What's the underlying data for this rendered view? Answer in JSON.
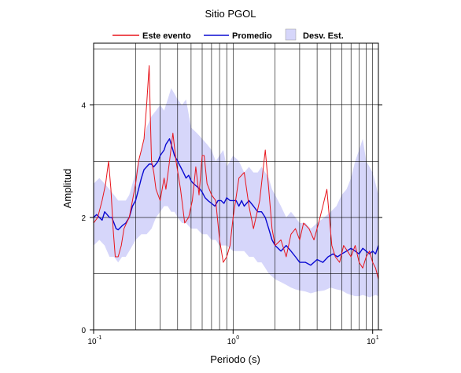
{
  "chart_data": {
    "type": "line",
    "title": "Sitio PGOL",
    "xlabel": "Periodo (s)",
    "ylabel": "Amplitud",
    "xscale": "log",
    "xlim": [
      0.1,
      11
    ],
    "ylim": [
      0,
      5.1
    ],
    "xticks": [
      {
        "value": 0.1,
        "base": "10",
        "exp": "-1"
      },
      {
        "value": 1,
        "base": "10",
        "exp": "0"
      },
      {
        "value": 10,
        "base": "10",
        "exp": "1"
      }
    ],
    "yticks": [
      {
        "value": 0,
        "label": "0"
      },
      {
        "value": 2,
        "label": "2"
      },
      {
        "value": 4,
        "label": "4"
      }
    ],
    "ygrid": [
      1,
      2,
      3,
      4,
      5
    ],
    "grid": true,
    "legend_position": "top",
    "colors": {
      "event": "#e8141b",
      "mean": "#0a0ad2",
      "std": "#d6d6fa"
    },
    "legend": [
      {
        "label": "Este evento",
        "kind": "line",
        "color": "#e8141b"
      },
      {
        "label": "Promedio",
        "kind": "line",
        "color": "#0a0ad2"
      },
      {
        "label": "Desv. Est.",
        "kind": "patch",
        "color": "#d6d6fa"
      }
    ],
    "series": [
      {
        "name": "Este evento",
        "color": "#e8141b",
        "x": [
          0.1,
          0.107,
          0.115,
          0.122,
          0.128,
          0.133,
          0.138,
          0.143,
          0.15,
          0.158,
          0.165,
          0.172,
          0.18,
          0.19,
          0.2,
          0.21,
          0.22,
          0.23,
          0.24,
          0.25,
          0.255,
          0.26,
          0.27,
          0.28,
          0.3,
          0.32,
          0.33,
          0.35,
          0.37,
          0.39,
          0.42,
          0.45,
          0.48,
          0.51,
          0.54,
          0.57,
          0.6,
          0.62,
          0.65,
          0.7,
          0.75,
          0.8,
          0.85,
          0.9,
          0.95,
          1.0,
          1.1,
          1.2,
          1.3,
          1.4,
          1.55,
          1.7,
          1.8,
          1.9,
          2.0,
          2.2,
          2.4,
          2.6,
          2.8,
          3.0,
          3.2,
          3.5,
          3.8,
          4.1,
          4.4,
          4.7,
          4.9,
          5.1,
          5.4,
          5.8,
          6.2,
          6.6,
          7.0,
          7.5,
          8.0,
          8.5,
          9.0,
          9.5,
          10.0,
          10.5,
          11.0
        ],
        "values": [
          1.9,
          2.0,
          2.3,
          2.6,
          3.0,
          2.5,
          1.8,
          1.3,
          1.3,
          1.5,
          1.8,
          1.9,
          2.0,
          2.3,
          2.6,
          3.0,
          3.2,
          3.4,
          4.0,
          4.7,
          3.8,
          3.0,
          2.8,
          2.5,
          2.3,
          2.7,
          2.5,
          3.0,
          3.5,
          3.0,
          2.5,
          1.9,
          2.0,
          2.3,
          2.9,
          2.4,
          3.1,
          3.1,
          2.6,
          2.4,
          2.3,
          1.6,
          1.2,
          1.3,
          1.5,
          2.0,
          2.7,
          2.8,
          2.2,
          1.8,
          2.3,
          3.2,
          2.5,
          1.8,
          1.5,
          1.6,
          1.3,
          1.7,
          1.8,
          1.6,
          1.9,
          1.8,
          1.6,
          1.9,
          2.2,
          2.5,
          2.0,
          1.5,
          1.3,
          1.2,
          1.5,
          1.4,
          1.3,
          1.5,
          1.2,
          1.1,
          1.3,
          1.4,
          1.2,
          1.1,
          0.9
        ]
      },
      {
        "name": "Promedio",
        "color": "#0a0ad2",
        "x": [
          0.1,
          0.105,
          0.11,
          0.115,
          0.12,
          0.125,
          0.13,
          0.135,
          0.14,
          0.145,
          0.15,
          0.16,
          0.17,
          0.18,
          0.19,
          0.2,
          0.21,
          0.22,
          0.23,
          0.24,
          0.25,
          0.26,
          0.27,
          0.28,
          0.29,
          0.3,
          0.31,
          0.32,
          0.33,
          0.34,
          0.35,
          0.36,
          0.37,
          0.38,
          0.39,
          0.4,
          0.42,
          0.44,
          0.46,
          0.48,
          0.5,
          0.52,
          0.55,
          0.58,
          0.6,
          0.63,
          0.66,
          0.7,
          0.74,
          0.78,
          0.82,
          0.86,
          0.9,
          0.95,
          1.0,
          1.05,
          1.1,
          1.15,
          1.2,
          1.3,
          1.4,
          1.5,
          1.6,
          1.7,
          1.8,
          1.9,
          2.0,
          2.2,
          2.4,
          2.6,
          2.8,
          3.0,
          3.3,
          3.6,
          4.0,
          4.4,
          4.8,
          5.2,
          5.6,
          6.0,
          6.5,
          7.0,
          7.5,
          8.0,
          8.5,
          9.0,
          9.5,
          10.0,
          10.5,
          11.0
        ],
        "values": [
          2.0,
          2.05,
          2.0,
          1.95,
          2.1,
          2.05,
          2.0,
          2.0,
          1.9,
          1.8,
          1.78,
          1.85,
          1.9,
          2.0,
          2.2,
          2.3,
          2.5,
          2.7,
          2.85,
          2.9,
          2.95,
          2.95,
          2.9,
          2.95,
          3.0,
          3.1,
          3.15,
          3.2,
          3.3,
          3.35,
          3.4,
          3.3,
          3.2,
          3.1,
          3.05,
          3.0,
          2.9,
          2.8,
          2.7,
          2.75,
          2.65,
          2.6,
          2.55,
          2.5,
          2.45,
          2.35,
          2.3,
          2.25,
          2.2,
          2.3,
          2.3,
          2.25,
          2.35,
          2.3,
          2.3,
          2.3,
          2.2,
          2.3,
          2.2,
          2.3,
          2.2,
          2.1,
          2.1,
          2.0,
          1.8,
          1.6,
          1.5,
          1.4,
          1.5,
          1.4,
          1.3,
          1.2,
          1.2,
          1.15,
          1.25,
          1.2,
          1.3,
          1.35,
          1.3,
          1.35,
          1.4,
          1.45,
          1.4,
          1.35,
          1.45,
          1.4,
          1.35,
          1.4,
          1.35,
          1.5
        ]
      }
    ],
    "std_band": {
      "name": "Desv. Est.",
      "color": "#d6d6fa",
      "x": [
        0.1,
        0.11,
        0.12,
        0.13,
        0.14,
        0.15,
        0.16,
        0.17,
        0.18,
        0.19,
        0.2,
        0.22,
        0.24,
        0.26,
        0.28,
        0.3,
        0.32,
        0.34,
        0.36,
        0.38,
        0.4,
        0.43,
        0.46,
        0.5,
        0.55,
        0.6,
        0.65,
        0.7,
        0.75,
        0.8,
        0.85,
        0.9,
        1.0,
        1.1,
        1.2,
        1.3,
        1.4,
        1.5,
        1.6,
        1.7,
        1.8,
        1.9,
        2.0,
        2.2,
        2.4,
        2.6,
        2.8,
        3.0,
        3.3,
        3.6,
        4.0,
        4.5,
        5.0,
        5.5,
        6.0,
        6.5,
        7.0,
        7.5,
        8.0,
        8.5,
        9.0,
        9.5,
        10.0,
        10.5,
        11.0
      ],
      "upper": [
        2.6,
        2.7,
        2.6,
        2.5,
        2.4,
        2.3,
        2.3,
        2.3,
        2.4,
        2.6,
        2.8,
        3.2,
        3.6,
        3.8,
        3.9,
        4.0,
        3.9,
        4.1,
        4.3,
        4.2,
        4.1,
        4.0,
        4.1,
        3.6,
        3.5,
        3.4,
        3.3,
        3.2,
        3.0,
        3.1,
        3.2,
        2.9,
        3.1,
        3.0,
        2.8,
        2.9,
        2.8,
        2.8,
        2.9,
        2.8,
        2.7,
        2.5,
        2.4,
        2.2,
        2.0,
        2.1,
        2.0,
        1.9,
        1.9,
        1.8,
        1.9,
        2.0,
        2.1,
        2.2,
        2.4,
        2.5,
        2.7,
        3.0,
        3.2,
        3.4,
        3.0,
        2.9,
        2.8,
        2.6,
        2.4
      ],
      "lower": [
        1.5,
        1.6,
        1.5,
        1.3,
        1.3,
        1.2,
        1.3,
        1.3,
        1.4,
        1.5,
        1.6,
        1.7,
        1.7,
        1.8,
        2.0,
        2.1,
        2.2,
        2.2,
        2.1,
        2.1,
        2.0,
        1.9,
        1.9,
        1.8,
        1.8,
        1.7,
        1.7,
        1.6,
        1.6,
        1.5,
        1.5,
        1.5,
        1.4,
        1.4,
        1.4,
        1.3,
        1.3,
        1.2,
        1.2,
        1.1,
        1.0,
        0.95,
        0.9,
        0.85,
        0.8,
        0.75,
        0.72,
        0.7,
        0.68,
        0.65,
        0.68,
        0.7,
        0.75,
        0.72,
        0.7,
        0.65,
        0.62,
        0.6,
        0.6,
        0.62,
        0.6,
        0.58,
        0.6,
        0.62,
        0.6
      ]
    }
  }
}
